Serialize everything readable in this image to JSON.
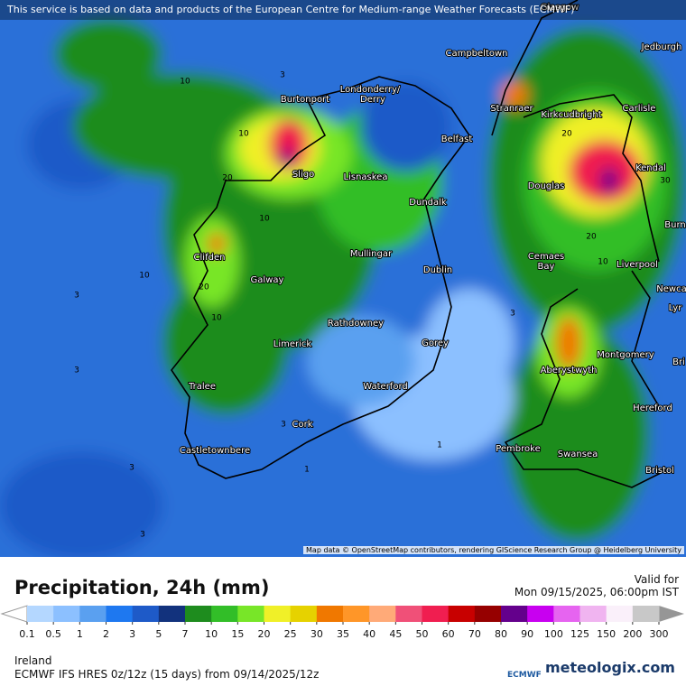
{
  "header": {
    "attribution": "This service is based on data and products of the European Centre for Medium-range Weather Forecasts (ECMWF)"
  },
  "map": {
    "places": [
      "Glasgow",
      "Jedburgh",
      "Campbeltown",
      "Londonderry/",
      "Derry",
      "Burtonport",
      "Stranraer",
      "Kirkcudbright",
      "Carlisle",
      "Belfast",
      "Sligo",
      "Lisnaskea",
      "Kendal",
      "Douglas",
      "Dundalk",
      "Burn",
      "Clifden",
      "Mullingar",
      "Cemaes",
      "Bay",
      "Liverpool",
      "Galway",
      "Dublin",
      "Newca",
      "Lyr",
      "Rathdowney",
      "Limerick",
      "Gorey",
      "Montgomery",
      "Aberystwyth",
      "Bri",
      "Tralee",
      "Waterford",
      "Hereford",
      "Cork",
      "Pembroke",
      "Castletownbere",
      "Swansea",
      "Bristol"
    ],
    "contour_labels": [
      10,
      3,
      10,
      20,
      10,
      10,
      20,
      3,
      10,
      3,
      3,
      1,
      1,
      3,
      3,
      3,
      20,
      10,
      30,
      20
    ],
    "credit": "Map data © OpenStreetMap contributors, rendering GIScience Research Group @ Heidelberg University"
  },
  "footer": {
    "title": "Precipitation, 24h (mm)",
    "valid_label": "Valid for",
    "valid_time": "Mon 09/15/2025, 06:00pm IST",
    "region": "Ireland",
    "model": "ECMWF IFS HRES 0z/12z (15 days) from 09/14/2025/12z",
    "logo_ecmwf": "ECMWF",
    "logo_brand": "meteologix.com"
  },
  "legend": {
    "levels": [
      0.1,
      0.5,
      1,
      2,
      3,
      5,
      7,
      10,
      15,
      20,
      25,
      30,
      35,
      40,
      45,
      50,
      60,
      70,
      80,
      90,
      100,
      125,
      150,
      200,
      300
    ],
    "colors": [
      "#b4d7ff",
      "#8cc0ff",
      "#5aa0f0",
      "#1e78f0",
      "#1e5ac8",
      "#12327d",
      "#1e8c1e",
      "#32be28",
      "#78e628",
      "#f0f028",
      "#e6d200",
      "#f07800",
      "#ff9628",
      "#ffaa78",
      "#f05078",
      "#f01e50",
      "#c80000",
      "#960000",
      "#64008c",
      "#c800f0",
      "#e664f0",
      "#f0b4f0",
      "#faf0fa",
      "#c8c8c8"
    ]
  }
}
